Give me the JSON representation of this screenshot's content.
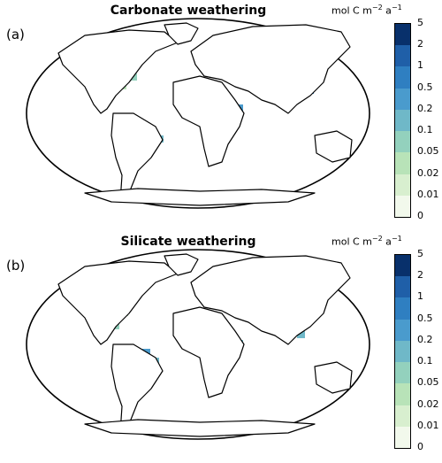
{
  "units_prefix": "mol C m",
  "units_exp1": "−2",
  "units_mid": " a",
  "units_exp2": "−1",
  "colorbar": {
    "ticks": [
      "5",
      "2",
      "1",
      "0.5",
      "0.2",
      "0.1",
      "0.05",
      "0.02",
      "0.01",
      "0"
    ],
    "colors": [
      "#08306b",
      "#1f5fa8",
      "#2f7fc1",
      "#4a9bcd",
      "#6fb8c8",
      "#93d1bd",
      "#b8e3b8",
      "#d8efcf",
      "#f2f9ec"
    ]
  },
  "panels": [
    {
      "label": "(a)",
      "title": "Carbonate weathering"
    },
    {
      "label": "(b)",
      "title": "Silicate weathering"
    }
  ]
}
